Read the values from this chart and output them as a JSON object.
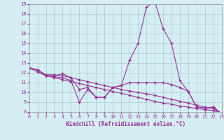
{
  "x_values": [
    0,
    1,
    2,
    3,
    4,
    5,
    6,
    7,
    8,
    9,
    10,
    11,
    12,
    13,
    14,
    15,
    16,
    17,
    18,
    19,
    20,
    21,
    22,
    23
  ],
  "line1": [
    12.5,
    12.3,
    11.7,
    11.7,
    11.9,
    11.5,
    10.3,
    10.5,
    9.5,
    9.5,
    10.5,
    10.7,
    13.3,
    15.0,
    18.7,
    19.3,
    16.5,
    15.0,
    11.2,
    10.1,
    8.5,
    8.4,
    8.5,
    7.8
  ],
  "line2": [
    12.5,
    12.3,
    11.7,
    11.6,
    11.5,
    11.2,
    9.0,
    10.3,
    9.5,
    9.5,
    10.5,
    10.7,
    11.0,
    11.0,
    11.0,
    11.0,
    11.0,
    10.8,
    10.5,
    10.1,
    8.5,
    8.4,
    8.5,
    7.8
  ],
  "line3": [
    12.5,
    12.3,
    11.8,
    11.8,
    11.7,
    11.5,
    11.3,
    11.1,
    10.9,
    10.7,
    10.5,
    10.3,
    10.15,
    10.0,
    9.85,
    9.7,
    9.5,
    9.3,
    9.1,
    8.9,
    8.7,
    8.5,
    8.35,
    7.8
  ],
  "line4": [
    12.5,
    12.1,
    11.7,
    11.5,
    11.3,
    11.1,
    10.9,
    10.7,
    10.5,
    10.3,
    10.1,
    9.9,
    9.7,
    9.5,
    9.3,
    9.1,
    8.9,
    8.8,
    8.6,
    8.5,
    8.35,
    8.25,
    8.15,
    7.8
  ],
  "xlim": [
    0,
    23
  ],
  "ylim": [
    8,
    19
  ],
  "yticks": [
    8,
    9,
    10,
    11,
    12,
    13,
    14,
    15,
    16,
    17,
    18,
    19
  ],
  "xticks": [
    0,
    1,
    2,
    3,
    4,
    5,
    6,
    7,
    8,
    9,
    10,
    11,
    12,
    13,
    14,
    15,
    16,
    17,
    18,
    19,
    20,
    21,
    22,
    23
  ],
  "xlabel": "Windchill (Refroidissement éolien,°C)",
  "line_color": "#993399",
  "bg_color": "#d4eef4",
  "grid_color": "#aacccc"
}
